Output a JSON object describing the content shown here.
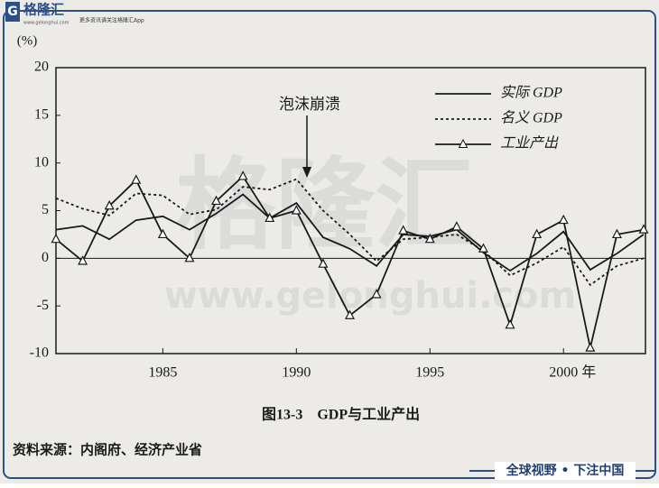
{
  "header": {
    "logo": "格隆汇",
    "url": "www.gelonghui.com",
    "slogan": "更多资讯请关注格隆汇App"
  },
  "watermark": {
    "logo": "格隆汇",
    "url": "www.gelonghui.com"
  },
  "chart_data": {
    "type": "line",
    "ylabel": "(%)",
    "annotation": "泡沫崩溃",
    "x": [
      1981,
      1982,
      1983,
      1984,
      1985,
      1986,
      1987,
      1988,
      1989,
      1990,
      1991,
      1992,
      1993,
      1994,
      1995,
      1996,
      1997,
      1998,
      1999,
      2000,
      2001,
      2002,
      2003
    ],
    "series": [
      {
        "name": "实际 GDP",
        "color": "#1a1a1a",
        "linestyle": "solid",
        "marker": "none",
        "values": [
          3.0,
          3.4,
          2.0,
          4.0,
          4.4,
          3.0,
          4.7,
          6.7,
          4.2,
          5.8,
          2.2,
          1.0,
          -0.8,
          2.5,
          2.3,
          3.0,
          0.6,
          -1.3,
          0.5,
          2.8,
          -1.2,
          0.5,
          2.5
        ]
      },
      {
        "name": "名义 GDP",
        "color": "#1a1a1a",
        "linestyle": "dotted",
        "marker": "none",
        "values": [
          6.3,
          5.2,
          4.5,
          6.8,
          6.6,
          4.6,
          5.1,
          7.5,
          7.2,
          8.3,
          5.0,
          2.5,
          -0.3,
          2.0,
          2.2,
          2.5,
          0.8,
          -1.8,
          -0.5,
          1.2,
          -2.8,
          -0.8,
          0.0
        ]
      },
      {
        "name": "工业产出",
        "color": "#1a1a1a",
        "linestyle": "solid",
        "marker": "triangle",
        "values": [
          2.0,
          -0.3,
          5.5,
          8.2,
          2.5,
          0.0,
          6.0,
          8.6,
          4.2,
          5.0,
          -0.6,
          -6.0,
          -3.8,
          2.9,
          2.0,
          3.3,
          1.0,
          -7.0,
          2.5,
          4.0,
          -9.4,
          2.5,
          3.0
        ]
      }
    ],
    "xlim": [
      1981,
      2003
    ],
    "ylim": [
      -10,
      20
    ],
    "xticks": [
      1985,
      1990,
      1995,
      {
        "value": 2000,
        "label": "2000 年"
      }
    ],
    "yticks": [
      -10,
      -5,
      0,
      5,
      10,
      15,
      20
    ],
    "grid": false,
    "legend": "upper right"
  },
  "caption": "图13-3　GDP与工业产出",
  "source": "资料来源：内阁府、经济产业省",
  "footer": "全球视野 • 下注中国"
}
